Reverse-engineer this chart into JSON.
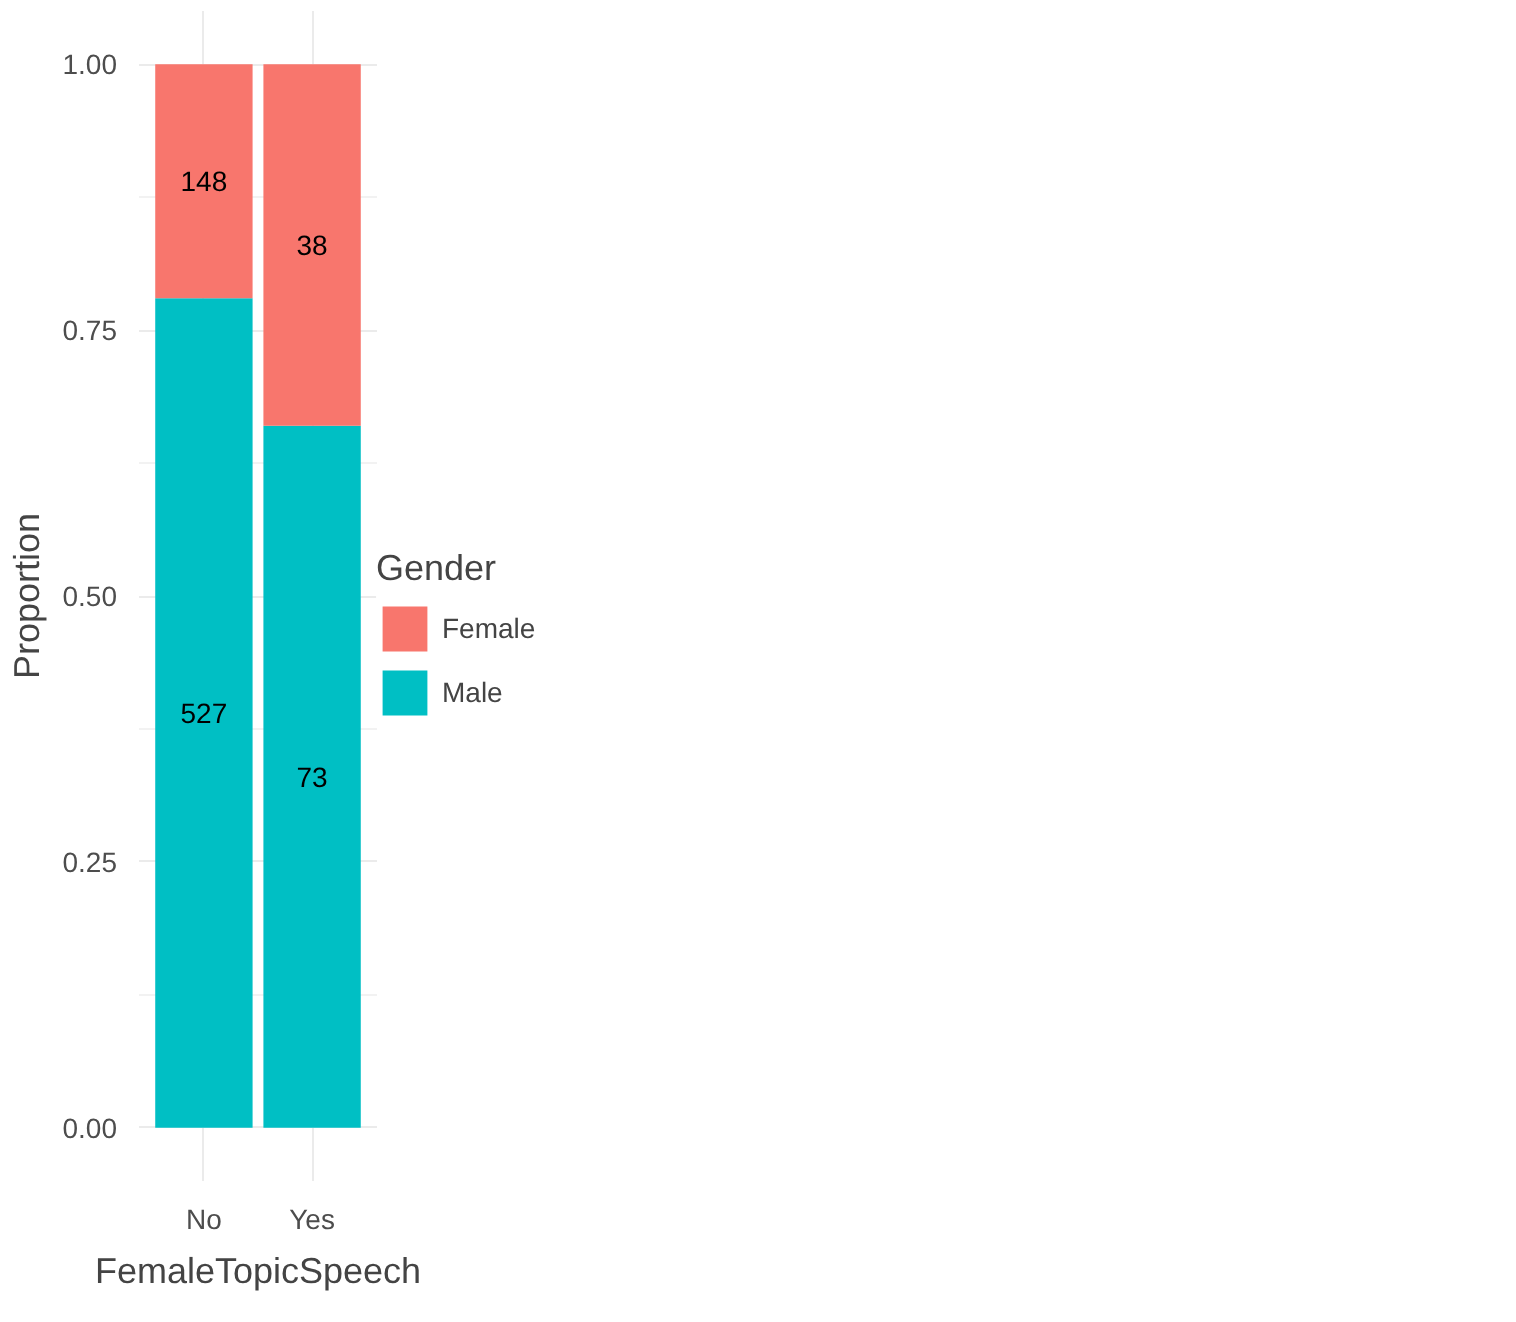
{
  "chart_data": {
    "type": "bar",
    "stacked": true,
    "xlabel": "FemaleTopicSpeech",
    "ylabel": "Proportion",
    "legend_title": "Gender",
    "categories": [
      "No",
      "Yes"
    ],
    "series": [
      {
        "name": "Male",
        "color": "#00bfc4",
        "values": [
          0.78,
          0.66
        ]
      },
      {
        "name": "Female",
        "color": "#f8766d",
        "values": [
          0.22,
          0.34
        ]
      }
    ],
    "annotations": [
      "527",
      "73",
      "148",
      "38"
    ],
    "ylim": [
      -0.05,
      1.05
    ],
    "yticks": [
      {
        "value": 0,
        "label": "0.00"
      },
      {
        "value": 0.25,
        "label": "0.25"
      },
      {
        "value": 0.5,
        "label": "0.50"
      },
      {
        "value": 0.75,
        "label": "0.75"
      },
      {
        "value": 1,
        "label": "1.00"
      }
    ],
    "grid": true,
    "legend": "right"
  }
}
